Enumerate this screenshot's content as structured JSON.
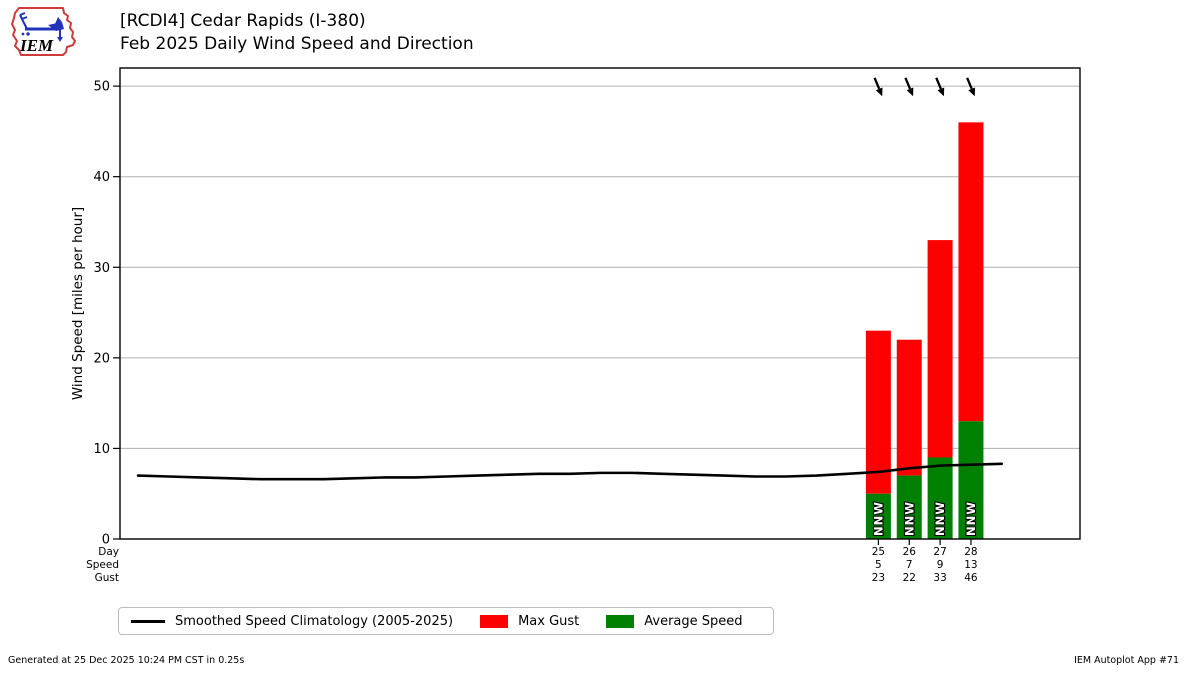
{
  "header": {
    "logo_text": "IEM",
    "title_line1": "[RCDI4] Cedar Rapids (I-380)",
    "title_line2": "Feb 2025 Daily Wind Speed and Direction"
  },
  "chart_data": {
    "type": "bar",
    "title": "Feb 2025 Daily Wind Speed and Direction",
    "station": "[RCDI4] Cedar Rapids (I-380)",
    "ylabel": "Wind Speed [miles per hour]",
    "ylim": [
      0,
      52
    ],
    "yticks": [
      0,
      10,
      20,
      30,
      40,
      50
    ],
    "grid": "horizontal",
    "month_days": 28,
    "x_row_headers": [
      "Day",
      "Speed",
      "Gust"
    ],
    "bars": [
      {
        "day": 25,
        "speed": 5,
        "gust": 23,
        "direction": "NNW",
        "direction_from_deg": 337.5
      },
      {
        "day": 26,
        "speed": 7,
        "gust": 22,
        "direction": "NNW",
        "direction_from_deg": 337.5
      },
      {
        "day": 27,
        "speed": 9,
        "gust": 33,
        "direction": "NNW",
        "direction_from_deg": 337.5
      },
      {
        "day": 28,
        "speed": 13,
        "gust": 46,
        "direction": "NNW",
        "direction_from_deg": 337.5
      }
    ],
    "climatology": {
      "label": "Smoothed Speed Climatology (2005-2025)",
      "x": [
        1,
        2,
        3,
        4,
        5,
        6,
        7,
        8,
        9,
        10,
        11,
        12,
        13,
        14,
        15,
        16,
        17,
        18,
        19,
        20,
        21,
        22,
        23,
        24,
        25,
        26,
        27,
        28,
        29
      ],
      "values": [
        7.0,
        6.9,
        6.8,
        6.7,
        6.6,
        6.6,
        6.6,
        6.7,
        6.8,
        6.8,
        6.9,
        7.0,
        7.1,
        7.2,
        7.2,
        7.3,
        7.3,
        7.2,
        7.1,
        7.0,
        6.9,
        6.9,
        7.0,
        7.2,
        7.4,
        7.8,
        8.1,
        8.2,
        8.3
      ]
    },
    "colors": {
      "max_gust": "#ff0000",
      "avg_speed": "#008000",
      "climatology": "#000000",
      "grid": "#b0b0b0",
      "axis": "#000000"
    }
  },
  "legend": {
    "items": [
      {
        "label": "Smoothed Speed Climatology (2005-2025)",
        "type": "line",
        "color": "#000000"
      },
      {
        "label": "Max Gust",
        "type": "rect",
        "color": "#ff0000"
      },
      {
        "label": "Average Speed",
        "type": "rect",
        "color": "#008000"
      }
    ]
  },
  "footer": {
    "left": "Generated at 25 Dec 2025 10:24 PM CST in 0.25s",
    "right": "IEM Autoplot App #71"
  }
}
